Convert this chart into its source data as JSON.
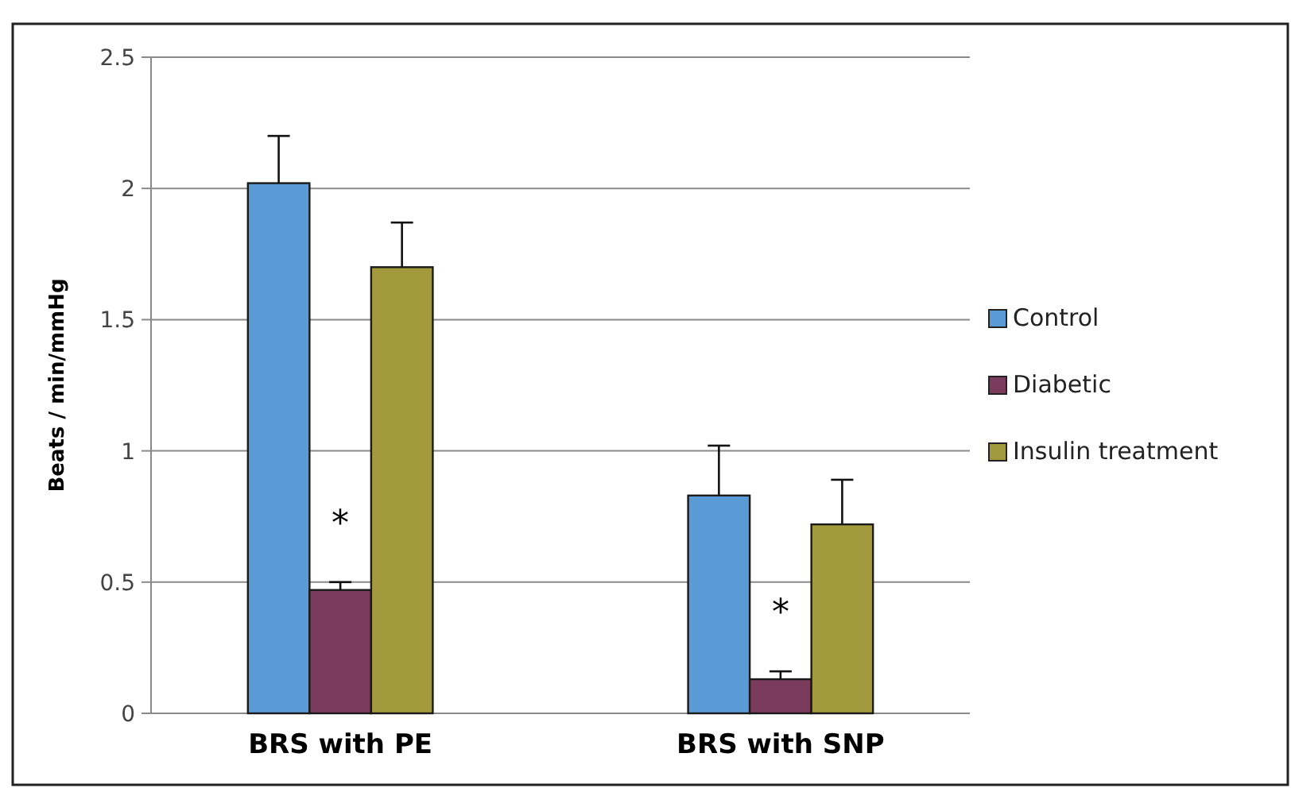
{
  "chart_data": {
    "type": "bar",
    "ylabel": "Beats / min/mmHg",
    "categories": [
      "BRS with PE",
      "BRS with SNP"
    ],
    "series": [
      {
        "name": "Control",
        "color": "#5b9bd5",
        "values": [
          2.02,
          0.83
        ],
        "errors": [
          0.18,
          0.19
        ]
      },
      {
        "name": "Diabetic",
        "color": "#7b3b5c",
        "values": [
          0.47,
          0.13
        ],
        "errors": [
          0.03,
          0.03
        ]
      },
      {
        "name": "Insulin treatment",
        "color": "#a39a3e",
        "values": [
          1.7,
          0.72
        ],
        "errors": [
          0.17,
          0.17
        ]
      }
    ],
    "ylim": [
      0,
      2.5
    ],
    "yticks": [
      0,
      0.5,
      1,
      1.5,
      2,
      2.5
    ],
    "grid": "y",
    "legend": "right",
    "annotations": [
      "*",
      "*"
    ]
  }
}
